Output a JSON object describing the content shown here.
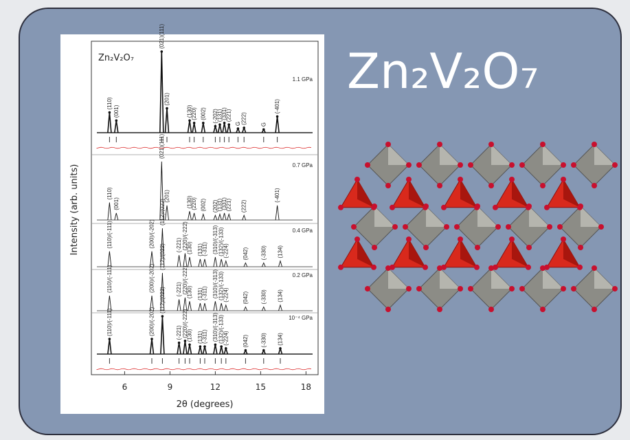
{
  "title": "Zn₂V₂O₇",
  "figure": {
    "formula": "Zn₂V₂O₇",
    "y_axis_label": "Intensity (arb. units)",
    "x_axis_label": "2θ (degrees)",
    "xlim": [
      3.8,
      18.8
    ],
    "xticks": [
      6,
      9,
      12,
      15,
      18
    ],
    "panels": [
      {
        "pressure": "1.1 GPa",
        "peaks": [
          {
            "x": 5.0,
            "h": 0.25,
            "label": "(110)"
          },
          {
            "x": 5.45,
            "h": 0.15,
            "label": "(001)"
          },
          {
            "x": 8.45,
            "h": 1.0,
            "label": "(021)(111)"
          },
          {
            "x": 8.8,
            "h": 0.3,
            "label": "(201)"
          },
          {
            "x": 10.3,
            "h": 0.15,
            "label": "(130)"
          },
          {
            "x": 10.6,
            "h": 0.12,
            "label": "(220)"
          },
          {
            "x": 11.2,
            "h": 0.12,
            "label": "(002)"
          },
          {
            "x": 12.0,
            "h": 0.08,
            "label": "(-202)"
          },
          {
            "x": 12.3,
            "h": 0.1,
            "label": "(131)"
          },
          {
            "x": 12.6,
            "h": 0.12,
            "label": "(331)"
          },
          {
            "x": 12.9,
            "h": 0.1,
            "label": "(221)"
          },
          {
            "x": 13.5,
            "h": 0.05,
            "label": "G"
          },
          {
            "x": 13.9,
            "h": 0.06,
            "label": "(222)"
          },
          {
            "x": 15.2,
            "h": 0.04,
            "label": "G"
          },
          {
            "x": 16.1,
            "h": 0.2,
            "label": "(-401)"
          }
        ]
      },
      {
        "pressure": "0.7 GPa",
        "peaks": [
          {
            "x": 5.0,
            "h": 0.3,
            "label": "(110)"
          },
          {
            "x": 5.45,
            "h": 0.12,
            "label": "(001)"
          },
          {
            "x": 8.45,
            "h": 1.0,
            "label": "(021)(111)"
          },
          {
            "x": 8.8,
            "h": 0.25,
            "label": "(201)"
          },
          {
            "x": 10.3,
            "h": 0.15,
            "label": "(130)"
          },
          {
            "x": 10.6,
            "h": 0.12,
            "label": "(220)"
          },
          {
            "x": 11.2,
            "h": 0.1,
            "label": "(002)"
          },
          {
            "x": 12.0,
            "h": 0.08,
            "label": "(202)"
          },
          {
            "x": 12.3,
            "h": 0.1,
            "label": "(131)"
          },
          {
            "x": 12.6,
            "h": 0.12,
            "label": "(331)"
          },
          {
            "x": 12.9,
            "h": 0.1,
            "label": "(221)"
          },
          {
            "x": 13.9,
            "h": 0.08,
            "label": "(222)"
          },
          {
            "x": 16.1,
            "h": 0.25,
            "label": "(-401)"
          }
        ]
      },
      {
        "pressure": "0.4 GPa",
        "peaks": [
          {
            "x": 5.0,
            "h": 0.4,
            "label": "(110)/(-111)"
          },
          {
            "x": 7.8,
            "h": 0.4,
            "label": "(200)/(-202)"
          },
          {
            "x": 8.5,
            "h": 1.0,
            "label": "(112)/(022)"
          },
          {
            "x": 9.6,
            "h": 0.3,
            "label": "(-221)"
          },
          {
            "x": 10.0,
            "h": 0.35,
            "label": "(220)/(-222)"
          },
          {
            "x": 10.3,
            "h": 0.25,
            "label": "(130)"
          },
          {
            "x": 11.0,
            "h": 0.2,
            "label": "(131)"
          },
          {
            "x": 11.3,
            "h": 0.2,
            "label": "(-311)"
          },
          {
            "x": 12.0,
            "h": 0.25,
            "label": "(310)/(-313)"
          },
          {
            "x": 12.4,
            "h": 0.2,
            "label": "(132)/(-133)"
          },
          {
            "x": 12.7,
            "h": 0.15,
            "label": "(-224)"
          },
          {
            "x": 14.0,
            "h": 0.1,
            "label": "(042)"
          },
          {
            "x": 15.2,
            "h": 0.1,
            "label": "(-330)"
          },
          {
            "x": 16.3,
            "h": 0.15,
            "label": "(134)"
          }
        ]
      },
      {
        "pressure": "0.2 GPa",
        "peaks": [
          {
            "x": 5.0,
            "h": 0.4,
            "label": "(110)/(-111)"
          },
          {
            "x": 7.8,
            "h": 0.4,
            "label": "(200)/(-202)"
          },
          {
            "x": 8.5,
            "h": 1.0,
            "label": "(112)/(022)"
          },
          {
            "x": 9.6,
            "h": 0.3,
            "label": "(-221)"
          },
          {
            "x": 10.0,
            "h": 0.35,
            "label": "(220)/(-222)"
          },
          {
            "x": 10.3,
            "h": 0.25,
            "label": "(130)"
          },
          {
            "x": 11.0,
            "h": 0.2,
            "label": "(131)"
          },
          {
            "x": 11.3,
            "h": 0.2,
            "label": "(-311)"
          },
          {
            "x": 12.0,
            "h": 0.25,
            "label": "(310)/(-313)"
          },
          {
            "x": 12.4,
            "h": 0.2,
            "label": "(132)/(-133)"
          },
          {
            "x": 12.7,
            "h": 0.15,
            "label": "(-224)"
          },
          {
            "x": 14.0,
            "h": 0.1,
            "label": "(042)"
          },
          {
            "x": 15.2,
            "h": 0.1,
            "label": "(-330)"
          },
          {
            "x": 16.3,
            "h": 0.15,
            "label": "(134)"
          }
        ]
      },
      {
        "pressure": "10⁻⁴ GPa",
        "peaks": [
          {
            "x": 5.0,
            "h": 0.4,
            "label": "(110)/(-111)"
          },
          {
            "x": 7.8,
            "h": 0.4,
            "label": "(200)/(-202)"
          },
          {
            "x": 8.5,
            "h": 1.0,
            "label": "(112)/(022)"
          },
          {
            "x": 9.6,
            "h": 0.3,
            "label": "(-221)"
          },
          {
            "x": 10.0,
            "h": 0.35,
            "label": "(220)/(-222)"
          },
          {
            "x": 10.3,
            "h": 0.25,
            "label": "(130)"
          },
          {
            "x": 11.0,
            "h": 0.2,
            "label": "(131)"
          },
          {
            "x": 11.3,
            "h": 0.2,
            "label": "(-311)"
          },
          {
            "x": 12.0,
            "h": 0.25,
            "label": "(310)/(-313)"
          },
          {
            "x": 12.4,
            "h": 0.2,
            "label": "(132)/(-133)"
          },
          {
            "x": 12.7,
            "h": 0.15,
            "label": "(-224)"
          },
          {
            "x": 14.0,
            "h": 0.1,
            "label": "(042)"
          },
          {
            "x": 15.2,
            "h": 0.1,
            "label": "(-330)"
          },
          {
            "x": 16.3,
            "h": 0.15,
            "label": "(134)"
          }
        ]
      }
    ]
  }
}
